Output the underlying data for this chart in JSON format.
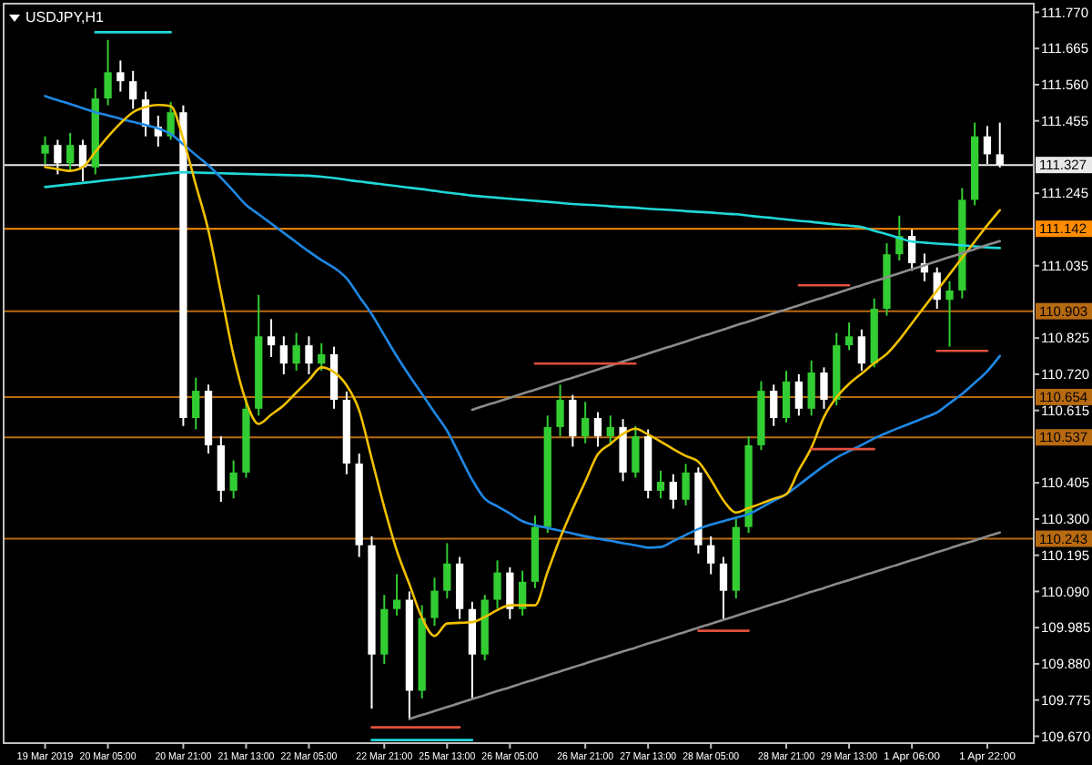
{
  "chart_data": {
    "type": "candlestick",
    "title": "USDJPY,H1",
    "categories": [
      "19 Mar 2019",
      null,
      null,
      null,
      null,
      "20 Mar 05:00",
      null,
      null,
      null,
      null,
      null,
      "20 Mar 21:00",
      null,
      null,
      null,
      null,
      "21 Mar 13:00",
      null,
      null,
      null,
      null,
      "22 Mar 05:00",
      null,
      null,
      null,
      null,
      null,
      "22 Mar 21:00",
      null,
      null,
      null,
      null,
      "25 Mar 13:00",
      null,
      null,
      null,
      null,
      "26 Mar 05:00",
      null,
      null,
      null,
      null,
      null,
      "26 Mar 21:00",
      null,
      null,
      null,
      null,
      "27 Mar 13:00",
      null,
      null,
      null,
      null,
      "28 Mar 05:00",
      null,
      null,
      null,
      null,
      null,
      "28 Mar 21:00",
      null,
      null,
      null,
      null,
      "29 Mar 13:00",
      null,
      null,
      null,
      null,
      "1 Apr 06:00",
      null,
      null,
      null,
      null,
      null,
      "1 Apr 22:00",
      null
    ],
    "ohlc": [
      [
        111.36,
        111.41,
        111.33,
        111.385
      ],
      [
        111.385,
        111.4,
        111.3,
        111.332
      ],
      [
        111.332,
        111.42,
        111.31,
        111.385
      ],
      [
        111.385,
        111.4,
        111.28,
        111.32
      ],
      [
        111.32,
        111.55,
        111.3,
        111.52
      ],
      [
        111.52,
        111.69,
        111.5,
        111.596
      ],
      [
        111.596,
        111.63,
        111.54,
        111.57
      ],
      [
        111.57,
        111.6,
        111.49,
        111.517
      ],
      [
        111.517,
        111.54,
        111.41,
        111.438
      ],
      [
        111.438,
        111.47,
        111.38,
        111.41
      ],
      [
        111.41,
        111.51,
        111.4,
        111.48
      ],
      [
        111.48,
        111.5,
        110.57,
        110.593
      ],
      [
        110.593,
        110.71,
        110.56,
        110.672
      ],
      [
        110.672,
        110.69,
        110.49,
        110.514
      ],
      [
        110.514,
        110.54,
        110.35,
        110.382
      ],
      [
        110.382,
        110.47,
        110.36,
        110.435
      ],
      [
        110.435,
        110.65,
        110.42,
        110.62
      ],
      [
        110.62,
        110.95,
        110.6,
        110.83
      ],
      [
        110.83,
        110.88,
        110.77,
        110.804
      ],
      [
        110.804,
        110.83,
        110.72,
        110.751
      ],
      [
        110.751,
        110.84,
        110.73,
        110.804
      ],
      [
        110.804,
        110.83,
        110.72,
        110.751
      ],
      [
        110.751,
        110.81,
        110.73,
        110.778
      ],
      [
        110.778,
        110.8,
        110.62,
        110.646
      ],
      [
        110.646,
        110.67,
        110.43,
        110.461
      ],
      [
        110.461,
        110.49,
        110.19,
        110.224
      ],
      [
        110.224,
        110.25,
        109.75,
        109.907
      ],
      [
        109.907,
        110.08,
        109.88,
        110.039
      ],
      [
        110.039,
        110.14,
        110.02,
        110.066
      ],
      [
        110.066,
        110.09,
        109.72,
        109.802
      ],
      [
        109.802,
        110.05,
        109.78,
        110.013
      ],
      [
        110.013,
        110.13,
        109.99,
        110.092
      ],
      [
        110.092,
        110.23,
        110.07,
        110.171
      ],
      [
        110.171,
        110.19,
        110.01,
        110.039
      ],
      [
        110.039,
        110.06,
        109.78,
        109.907
      ],
      [
        109.907,
        110.08,
        109.89,
        110.066
      ],
      [
        110.066,
        110.18,
        110.04,
        110.145
      ],
      [
        110.145,
        110.16,
        110.01,
        110.039
      ],
      [
        110.039,
        110.15,
        110.02,
        110.118
      ],
      [
        110.118,
        110.31,
        110.1,
        110.277
      ],
      [
        110.277,
        110.6,
        110.26,
        110.567
      ],
      [
        110.567,
        110.69,
        110.54,
        110.646
      ],
      [
        110.646,
        110.66,
        110.51,
        110.54
      ],
      [
        110.54,
        110.64,
        110.52,
        110.593
      ],
      [
        110.593,
        110.61,
        110.51,
        110.54
      ],
      [
        110.54,
        110.6,
        110.52,
        110.567
      ],
      [
        110.567,
        110.59,
        110.41,
        110.435
      ],
      [
        110.435,
        110.57,
        110.42,
        110.54
      ],
      [
        110.54,
        110.56,
        110.36,
        110.382
      ],
      [
        110.382,
        110.44,
        110.36,
        110.408
      ],
      [
        110.408,
        110.43,
        110.33,
        110.356
      ],
      [
        110.356,
        110.46,
        110.34,
        110.435
      ],
      [
        110.435,
        110.45,
        110.2,
        110.224
      ],
      [
        110.224,
        110.25,
        110.14,
        110.171
      ],
      [
        110.171,
        110.19,
        110.01,
        110.092
      ],
      [
        110.092,
        110.3,
        110.07,
        110.277
      ],
      [
        110.277,
        110.54,
        110.26,
        110.514
      ],
      [
        110.514,
        110.7,
        110.5,
        110.672
      ],
      [
        110.672,
        110.69,
        110.57,
        110.593
      ],
      [
        110.593,
        110.73,
        110.58,
        110.699
      ],
      [
        110.699,
        110.72,
        110.6,
        110.62
      ],
      [
        110.62,
        110.76,
        110.6,
        110.725
      ],
      [
        110.725,
        110.74,
        110.62,
        110.646
      ],
      [
        110.646,
        110.84,
        110.63,
        110.804
      ],
      [
        110.804,
        110.87,
        110.79,
        110.83
      ],
      [
        110.83,
        110.85,
        110.73,
        110.751
      ],
      [
        110.751,
        110.94,
        110.74,
        110.91
      ],
      [
        110.91,
        111.1,
        110.89,
        111.068
      ],
      [
        111.068,
        111.18,
        111.05,
        111.121
      ],
      [
        111.121,
        111.14,
        111.02,
        111.042
      ],
      [
        111.042,
        111.07,
        110.99,
        111.015
      ],
      [
        111.015,
        111.03,
        110.91,
        110.936
      ],
      [
        110.936,
        110.99,
        110.8,
        110.963
      ],
      [
        110.963,
        111.26,
        110.94,
        111.226
      ],
      [
        111.226,
        111.45,
        111.21,
        111.41
      ],
      [
        111.41,
        111.44,
        111.33,
        111.358
      ],
      [
        111.358,
        111.45,
        111.32,
        111.327
      ]
    ],
    "colors": [
      "#32cd32",
      "#ffffff",
      "#32cd32",
      "#ffffff",
      "#32cd32",
      "#32cd32",
      "#ffffff",
      "#ffffff",
      "#ffffff",
      "#ffffff",
      "#32cd32",
      "#ffffff",
      "#32cd32",
      "#ffffff",
      "#ffffff",
      "#32cd32",
      "#32cd32",
      "#32cd32",
      "#ffffff",
      "#ffffff",
      "#32cd32",
      "#ffffff",
      "#32cd32",
      "#ffffff",
      "#ffffff",
      "#ffffff",
      "#ffffff",
      "#32cd32",
      "#32cd32",
      "#ffffff",
      "#32cd32",
      "#32cd32",
      "#32cd32",
      "#ffffff",
      "#ffffff",
      "#32cd32",
      "#32cd32",
      "#ffffff",
      "#32cd32",
      "#32cd32",
      "#32cd32",
      "#32cd32",
      "#ffffff",
      "#32cd32",
      "#ffffff",
      "#32cd32",
      "#ffffff",
      "#32cd32",
      "#ffffff",
      "#32cd32",
      "#ffffff",
      "#32cd32",
      "#ffffff",
      "#ffffff",
      "#ffffff",
      "#32cd32",
      "#32cd32",
      "#32cd32",
      "#ffffff",
      "#32cd32",
      "#ffffff",
      "#32cd32",
      "#ffffff",
      "#32cd32",
      "#32cd32",
      "#ffffff",
      "#32cd32",
      "#32cd32",
      "#32cd32",
      "#ffffff",
      "#ffffff",
      "#ffffff",
      "#32cd32",
      "#32cd32",
      "#32cd32",
      "#ffffff",
      "#ffffff"
    ],
    "series": [
      {
        "type": "line",
        "color": "#20d8d8",
        "values": [
          111.263,
          111.267,
          111.271,
          111.275,
          111.279,
          111.283,
          111.287,
          111.291,
          111.295,
          111.299,
          111.303,
          111.306,
          111.305,
          111.304,
          111.303,
          111.302,
          111.301,
          111.3,
          111.299,
          111.298,
          111.297,
          111.296,
          111.293,
          111.289,
          111.284,
          111.279,
          111.275,
          111.27,
          111.266,
          111.261,
          111.257,
          111.252,
          111.247,
          111.243,
          111.238,
          111.235,
          111.232,
          111.229,
          111.226,
          111.223,
          111.22,
          111.217,
          111.214,
          111.212,
          111.21,
          111.207,
          111.205,
          111.203,
          111.2,
          111.198,
          111.196,
          111.193,
          111.191,
          111.189,
          111.186,
          111.184,
          111.18,
          111.176,
          111.173,
          111.169,
          111.165,
          111.162,
          111.158,
          111.154,
          111.151,
          111.147,
          111.136,
          111.126,
          111.115,
          111.105,
          111.102,
          111.099,
          111.097,
          111.094,
          111.091,
          111.088,
          111.086
        ]
      },
      {
        "type": "line",
        "color": "#1e88e5",
        "values": [
          111.527,
          111.515,
          111.504,
          111.492,
          111.48,
          111.471,
          111.461,
          111.452,
          111.443,
          111.433,
          111.417,
          111.387,
          111.356,
          111.326,
          111.29,
          111.251,
          111.211,
          111.184,
          111.157,
          111.13,
          111.103,
          111.076,
          111.051,
          111.029,
          110.998,
          110.946,
          110.894,
          110.833,
          110.772,
          110.716,
          110.663,
          110.609,
          110.556,
          110.485,
          110.414,
          110.359,
          110.337,
          110.316,
          110.294,
          110.282,
          110.274,
          110.266,
          110.258,
          110.25,
          110.243,
          110.237,
          110.23,
          110.224,
          110.217,
          110.219,
          110.236,
          110.254,
          110.271,
          110.284,
          110.294,
          110.304,
          110.314,
          110.333,
          110.353,
          110.372,
          110.399,
          110.427,
          110.454,
          110.478,
          110.497,
          110.515,
          110.534,
          110.55,
          110.565,
          110.579,
          110.594,
          110.609,
          110.636,
          110.663,
          110.695,
          110.729,
          110.773
        ]
      },
      {
        "type": "line",
        "color": "#f0c000",
        "values": [
          111.321,
          111.315,
          111.31,
          111.321,
          111.365,
          111.409,
          111.448,
          111.48,
          111.495,
          111.501,
          111.498,
          111.402,
          111.269,
          111.137,
          110.956,
          110.775,
          110.641,
          110.576,
          110.603,
          110.63,
          110.667,
          110.703,
          110.74,
          110.726,
          110.688,
          110.615,
          110.475,
          110.334,
          110.208,
          110.111,
          110.014,
          109.961,
          109.997,
          109.999,
          110.001,
          110.016,
          110.036,
          110.05,
          110.05,
          110.05,
          110.147,
          110.245,
          110.33,
          110.409,
          110.488,
          110.518,
          110.547,
          110.562,
          110.545,
          110.525,
          110.503,
          110.483,
          110.466,
          110.414,
          110.354,
          110.319,
          110.332,
          110.345,
          110.359,
          110.372,
          110.442,
          110.507,
          110.596,
          110.653,
          110.692,
          110.722,
          110.752,
          110.779,
          110.82,
          110.868,
          110.916,
          110.963,
          111.01,
          111.058,
          111.105,
          111.152,
          111.196
        ]
      },
      {
        "type": "line",
        "color": "#8c8c8c",
        "values": [
          null,
          null,
          null,
          null,
          null,
          null,
          null,
          null,
          null,
          null,
          null,
          null,
          null,
          null,
          null,
          null,
          null,
          null,
          null,
          null,
          null,
          null,
          null,
          null,
          null,
          null,
          null,
          null,
          null,
          null,
          null,
          null,
          null,
          null,
          110.617,
          110.629,
          110.64,
          110.652,
          110.664,
          110.675,
          110.687,
          110.699,
          110.71,
          110.722,
          110.734,
          110.745,
          110.757,
          110.768,
          110.78,
          110.792,
          110.803,
          110.815,
          110.827,
          110.838,
          110.85,
          110.862,
          110.873,
          110.885,
          110.897,
          110.908,
          110.92,
          110.932,
          110.943,
          110.955,
          110.967,
          110.978,
          110.99,
          111.001,
          111.013,
          111.025,
          111.036,
          111.048,
          111.06,
          111.071,
          111.083,
          111.095,
          111.106
        ]
      },
      {
        "type": "line",
        "color": "#8c8c8c",
        "values": [
          null,
          null,
          null,
          null,
          null,
          null,
          null,
          null,
          null,
          null,
          null,
          null,
          null,
          null,
          null,
          null,
          null,
          null,
          null,
          null,
          null,
          null,
          null,
          null,
          null,
          null,
          null,
          null,
          null,
          109.72,
          109.732,
          109.743,
          109.755,
          109.766,
          109.778,
          109.789,
          109.801,
          109.812,
          109.824,
          109.835,
          109.847,
          109.858,
          109.87,
          109.881,
          109.893,
          109.904,
          109.916,
          109.927,
          109.939,
          109.95,
          109.962,
          109.973,
          109.985,
          109.996,
          110.008,
          110.019,
          110.031,
          110.042,
          110.054,
          110.065,
          110.077,
          110.089,
          110.1,
          110.112,
          110.123,
          110.135,
          110.146,
          110.158,
          110.169,
          110.181,
          110.192,
          110.204,
          110.215,
          110.227,
          110.238,
          110.25,
          110.261
        ]
      },
      {
        "type": "line",
        "color": "#20d8d8",
        "values": [
          null,
          null,
          null,
          null,
          111.712,
          111.712,
          111.712,
          111.712,
          111.712,
          111.712,
          111.712,
          null,
          null,
          null,
          null,
          null,
          null,
          null,
          null,
          null,
          null,
          null,
          null,
          null,
          null,
          null,
          null,
          null,
          null,
          null,
          null,
          null,
          null,
          null,
          null,
          null,
          null,
          null,
          null,
          null,
          null,
          null,
          null,
          null,
          null,
          null,
          null,
          null,
          null,
          null,
          null,
          null,
          null,
          null,
          null,
          null,
          null,
          null,
          null,
          null,
          null,
          null,
          null,
          null,
          null,
          null,
          null,
          null,
          null,
          null,
          null,
          null,
          null,
          null,
          null,
          null,
          null
        ]
      },
      {
        "type": "line",
        "color": "#e0503c",
        "values": [
          null,
          null,
          null,
          null,
          null,
          null,
          null,
          null,
          null,
          null,
          null,
          null,
          null,
          null,
          null,
          null,
          null,
          null,
          null,
          null,
          null,
          null,
          null,
          null,
          null,
          null,
          null,
          null,
          null,
          null,
          null,
          null,
          null,
          null,
          null,
          null,
          null,
          null,
          null,
          110.751,
          110.751,
          110.751,
          110.751,
          110.751,
          110.751,
          110.751,
          110.751,
          110.751,
          null,
          null,
          null,
          null,
          null,
          null,
          null,
          null,
          null,
          null,
          null,
          null,
          null,
          null,
          null,
          null,
          null,
          null,
          null,
          null,
          null,
          null,
          null,
          null,
          null,
          null,
          null,
          null,
          null
        ]
      },
      {
        "type": "line",
        "color": "#e0503c",
        "values": [
          null,
          null,
          null,
          null,
          null,
          null,
          null,
          null,
          null,
          null,
          null,
          null,
          null,
          null,
          null,
          null,
          null,
          null,
          null,
          null,
          null,
          null,
          null,
          null,
          null,
          null,
          null,
          null,
          null,
          null,
          null,
          null,
          null,
          null,
          null,
          null,
          null,
          null,
          null,
          null,
          null,
          null,
          null,
          null,
          null,
          null,
          null,
          null,
          null,
          null,
          null,
          null,
          null,
          null,
          null,
          null,
          null,
          null,
          null,
          null,
          110.978,
          110.978,
          110.978,
          110.978,
          110.978,
          null,
          null,
          null,
          null,
          null,
          null,
          null,
          null,
          null,
          null,
          null,
          null
        ]
      },
      {
        "type": "line",
        "color": "#e0503c",
        "values": [
          null,
          null,
          null,
          null,
          null,
          null,
          null,
          null,
          null,
          null,
          null,
          null,
          null,
          null,
          null,
          null,
          null,
          null,
          null,
          null,
          null,
          null,
          null,
          null,
          null,
          null,
          null,
          null,
          null,
          null,
          null,
          null,
          null,
          null,
          null,
          null,
          null,
          null,
          null,
          null,
          null,
          null,
          null,
          null,
          null,
          null,
          null,
          null,
          null,
          null,
          null,
          null,
          null,
          null,
          null,
          null,
          null,
          null,
          null,
          null,
          null,
          null,
          null,
          null,
          null,
          null,
          null,
          null,
          null,
          null,
          null,
          110.788,
          110.788,
          110.788,
          110.788,
          110.788,
          null
        ]
      },
      {
        "type": "line",
        "color": "#e0503c",
        "values": [
          null,
          null,
          null,
          null,
          null,
          null,
          null,
          null,
          null,
          null,
          null,
          null,
          null,
          null,
          null,
          null,
          null,
          null,
          null,
          null,
          null,
          null,
          null,
          null,
          null,
          null,
          null,
          null,
          null,
          null,
          null,
          null,
          null,
          null,
          null,
          null,
          null,
          null,
          null,
          null,
          null,
          null,
          null,
          null,
          null,
          null,
          null,
          null,
          null,
          null,
          null,
          null,
          null,
          null,
          null,
          null,
          null,
          null,
          null,
          null,
          null,
          110.503,
          110.503,
          110.503,
          110.503,
          110.503,
          110.503,
          null,
          null,
          null,
          null,
          null,
          null,
          null,
          null,
          null,
          null
        ]
      },
      {
        "type": "line",
        "color": "#e0503c",
        "values": [
          null,
          null,
          null,
          null,
          null,
          null,
          null,
          null,
          null,
          null,
          null,
          null,
          null,
          null,
          null,
          null,
          null,
          null,
          null,
          null,
          null,
          null,
          null,
          null,
          null,
          null,
          null,
          null,
          null,
          null,
          null,
          null,
          null,
          null,
          null,
          null,
          null,
          null,
          null,
          null,
          null,
          null,
          null,
          null,
          null,
          null,
          null,
          null,
          null,
          null,
          null,
          null,
          109.976,
          109.976,
          109.976,
          109.976,
          109.976,
          null,
          null,
          null,
          null,
          null,
          null,
          null,
          null,
          null,
          null,
          null,
          null,
          null,
          null,
          null,
          null,
          null,
          null,
          null,
          null
        ]
      },
      {
        "type": "line",
        "color": "#e0503c",
        "values": [
          null,
          null,
          null,
          null,
          null,
          null,
          null,
          null,
          null,
          null,
          null,
          null,
          null,
          null,
          null,
          null,
          null,
          null,
          null,
          null,
          null,
          null,
          null,
          null,
          null,
          null,
          109.696,
          109.696,
          109.696,
          109.696,
          109.696,
          109.696,
          109.696,
          109.696,
          null,
          null,
          null,
          null,
          null,
          null,
          null,
          null,
          null,
          null,
          null,
          null,
          null,
          null,
          null,
          null,
          null,
          null,
          null,
          null,
          null,
          null,
          null,
          null,
          null,
          null,
          null,
          null,
          null,
          null,
          null,
          null,
          null,
          null,
          null,
          null,
          null,
          null,
          null,
          null,
          null,
          null,
          null
        ]
      },
      {
        "type": "line",
        "color": "#20d8d8",
        "values": [
          null,
          null,
          null,
          null,
          null,
          null,
          null,
          null,
          null,
          null,
          null,
          null,
          null,
          null,
          null,
          null,
          null,
          null,
          null,
          null,
          null,
          null,
          null,
          null,
          null,
          null,
          109.659,
          109.659,
          109.659,
          109.659,
          109.659,
          109.659,
          109.659,
          109.659,
          109.659,
          null,
          null,
          null,
          null,
          null,
          null,
          null,
          null,
          null,
          null,
          null,
          null,
          null,
          null,
          null,
          null,
          null,
          null,
          null,
          null,
          null,
          null,
          null,
          null,
          null,
          null,
          null,
          null,
          null,
          null,
          null,
          null,
          null,
          null,
          null,
          null,
          null,
          null,
          null,
          null,
          null,
          null
        ]
      }
    ],
    "ref_lines": [
      {
        "axis": "y",
        "value": 111.327,
        "label": "111.327",
        "color": "#e8e8e8"
      },
      {
        "axis": "y",
        "value": 111.142,
        "label": "111.142",
        "color": "#ff8c00"
      },
      {
        "axis": "y",
        "value": 110.903,
        "label": "110.903",
        "color": "#b86a10"
      },
      {
        "axis": "y",
        "value": 110.654,
        "label": "110.654",
        "color": "#b86a10"
      },
      {
        "axis": "y",
        "value": 110.537,
        "label": "110.537",
        "color": "#b86a10"
      },
      {
        "axis": "y",
        "value": 110.243,
        "label": "110.243",
        "color": "#b86a10"
      }
    ],
    "ylim": [
      109.65,
      111.795
    ],
    "yticks": [
      {
        "value": 111.77,
        "label": "111.770"
      },
      {
        "value": 111.665,
        "label": "111.665"
      },
      {
        "value": 111.56,
        "label": "111.560"
      },
      {
        "value": 111.455,
        "label": "111.455"
      },
      {
        "value": 111.245,
        "label": "111.245"
      },
      {
        "value": 111.035,
        "label": "111.035"
      },
      {
        "value": 110.825,
        "label": "110.825"
      },
      {
        "value": 110.72,
        "label": "110.720"
      },
      {
        "value": 110.615,
        "label": "110.615"
      },
      {
        "value": 110.405,
        "label": "110.405"
      },
      {
        "value": 110.3,
        "label": "110.300"
      },
      {
        "value": 110.195,
        "label": "110.195"
      },
      {
        "value": 110.09,
        "label": "110.090"
      },
      {
        "value": 109.985,
        "label": "109.985"
      },
      {
        "value": 109.88,
        "label": "109.880"
      },
      {
        "value": 109.775,
        "label": "109.775"
      },
      {
        "value": 109.67,
        "label": "109.670"
      }
    ]
  }
}
